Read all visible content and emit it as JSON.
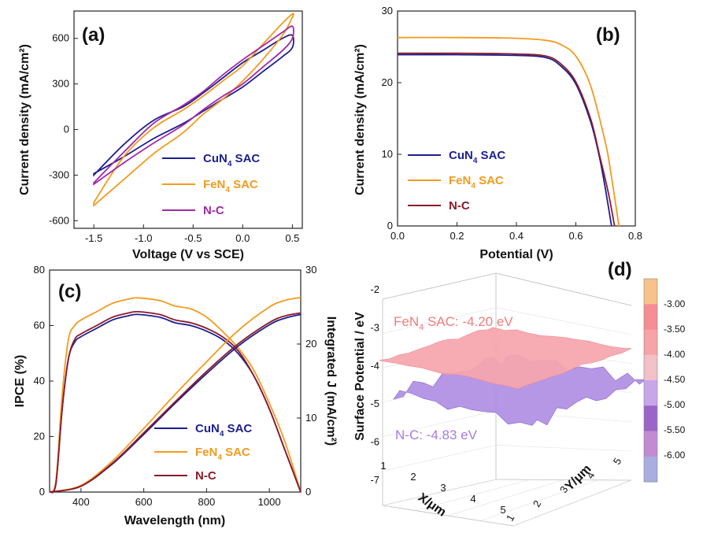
{
  "colors": {
    "cu": "#1d1f8f",
    "fe": "#f39a1e",
    "nc": "#8b1a2b",
    "ncD": "#a12aa6"
  },
  "panels": {
    "a": {
      "label": "(a)",
      "xlabel": "Voltage (V vs SCE)",
      "ylabel": "Current density (mA/cm²)",
      "xticks": [
        "-1.5",
        "-1.0",
        "-0.5",
        "0.0",
        "0.5"
      ],
      "yticks": [
        "-600",
        "-300",
        "0",
        "300",
        "600"
      ],
      "legend": [
        {
          "base": "CuN",
          "sub": "4",
          "rest": " SAC",
          "color": "#1d1f8f"
        },
        {
          "base": "FeN",
          "sub": "4",
          "rest": " SAC",
          "color": "#f39a1e"
        },
        {
          "base": "N-C",
          "sub": "",
          "rest": "",
          "color": "#a12aa6"
        }
      ]
    },
    "b": {
      "label": "(b)",
      "xlabel": "Potential (V)",
      "ylabel": "Current density (mA/cm²)",
      "xticks": [
        "0.0",
        "0.2",
        "0.4",
        "0.6",
        "0.8"
      ],
      "yticks": [
        "0",
        "10",
        "20",
        "30"
      ],
      "legend": [
        {
          "base": "CuN",
          "sub": "4",
          "rest": " SAC",
          "color": "#1d1f8f"
        },
        {
          "base": "FeN",
          "sub": "4",
          "rest": " SAC",
          "color": "#f39a1e"
        },
        {
          "base": "N-C",
          "sub": "",
          "rest": "",
          "color": "#8b1a2b"
        }
      ]
    },
    "c": {
      "label": "(c)",
      "xlabel": "Wavelength (nm)",
      "ylabel": "IPCE (%)",
      "y2label": "Integrated J (mA/cm²)",
      "xticks": [
        "400",
        "600",
        "800",
        "1000"
      ],
      "yticks": [
        "0",
        "20",
        "40",
        "60",
        "80"
      ],
      "y2ticks": [
        "0",
        "10",
        "20",
        "30"
      ],
      "legend": [
        {
          "base": "CuN",
          "sub": "4",
          "rest": " SAC",
          "color": "#1d1f8f"
        },
        {
          "base": "FeN",
          "sub": "4",
          "rest": " SAC",
          "color": "#f39a1e"
        },
        {
          "base": "N-C",
          "sub": "",
          "rest": "",
          "color": "#8b1a2b"
        }
      ]
    },
    "d": {
      "label": "(d)",
      "zlabel": "Surface Potential / eV",
      "xlabel": "X/μm",
      "ylabel": "Y/μm",
      "zticks": [
        "-2",
        "-3",
        "-4",
        "-5",
        "-6",
        "-7"
      ],
      "xticks": [
        "1",
        "2",
        "3",
        "4",
        "5"
      ],
      "yticks": [
        "1",
        "2",
        "3",
        "4",
        "5"
      ],
      "colorbar": [
        "-3.00",
        "-3.50",
        "-4.00",
        "-4.50",
        "-5.00",
        "-5.50",
        "-6.00"
      ],
      "colorbar_colors": [
        "#f7c28c",
        "#f58e92",
        "#f8a3a6",
        "#f1c1c7",
        "#c7a7e9",
        "#9a64c9",
        "#c38bd1",
        "#a8aee0"
      ],
      "annot_fe": {
        "base": "FeN",
        "sub": "4",
        "rest": " SAC: -4.20 eV",
        "color": "#f07c7c"
      },
      "annot_nc": {
        "text": "N-C: -4.83 eV",
        "color": "#a77be0"
      }
    }
  },
  "chart_data": [
    {
      "type": "line",
      "title": "(a)",
      "xlabel": "Voltage (V vs SCE)",
      "ylabel": "Current density (mA/cm²)",
      "xlim": [
        -1.7,
        0.6
      ],
      "ylim": [
        -650,
        780
      ],
      "series": [
        {
          "name": "CuN4 SAC",
          "x": [
            -1.5,
            -1.2,
            -0.9,
            -0.6,
            -0.4,
            -0.2,
            0,
            0.2,
            0.4,
            0.5,
            0.5,
            0.4,
            0.2,
            0,
            -0.2,
            -0.4,
            -0.6,
            -0.9,
            -1.2,
            -1.5
          ],
          "y": [
            -290,
            -180,
            -60,
            40,
            120,
            200,
            280,
            380,
            480,
            540,
            620,
            600,
            520,
            440,
            340,
            240,
            150,
            60,
            -100,
            -300
          ]
        },
        {
          "name": "FeN4 SAC",
          "x": [
            -1.5,
            -1.2,
            -0.9,
            -0.6,
            -0.4,
            -0.2,
            0,
            0.2,
            0.4,
            0.5,
            0.5,
            0.4,
            0.2,
            0,
            -0.2,
            -0.4,
            -0.6,
            -0.9,
            -1.2,
            -1.5
          ],
          "y": [
            -500,
            -330,
            -160,
            -20,
            100,
            200,
            320,
            460,
            620,
            740,
            760,
            700,
            560,
            420,
            320,
            220,
            130,
            10,
            -180,
            -480
          ]
        },
        {
          "name": "N-C",
          "x": [
            -1.5,
            -1.2,
            -0.9,
            -0.6,
            -0.4,
            -0.2,
            0,
            0.2,
            0.4,
            0.5,
            0.5,
            0.4,
            0.2,
            0,
            -0.2,
            -0.4,
            -0.6,
            -0.9,
            -1.2,
            -1.5
          ],
          "y": [
            -360,
            -220,
            -90,
            30,
            130,
            220,
            300,
            410,
            520,
            600,
            680,
            640,
            550,
            460,
            360,
            250,
            160,
            40,
            -150,
            -350
          ]
        }
      ]
    },
    {
      "type": "line",
      "title": "(b)",
      "xlabel": "Potential (V)",
      "ylabel": "Current density (mA/cm²)",
      "xlim": [
        0,
        0.8
      ],
      "ylim": [
        0,
        30
      ],
      "series": [
        {
          "name": "CuN4 SAC",
          "x": [
            0,
            0.2,
            0.4,
            0.5,
            0.55,
            0.6,
            0.65,
            0.68,
            0.7,
            0.72
          ],
          "y": [
            23.9,
            23.9,
            23.8,
            23.5,
            22.3,
            19.8,
            14.5,
            9.5,
            5.0,
            0
          ]
        },
        {
          "name": "FeN4 SAC",
          "x": [
            0,
            0.2,
            0.4,
            0.5,
            0.55,
            0.6,
            0.65,
            0.7,
            0.72,
            0.745
          ],
          "y": [
            26.3,
            26.3,
            26.2,
            25.9,
            25.3,
            23.7,
            19.5,
            11.5,
            6.8,
            0
          ]
        },
        {
          "name": "N-C",
          "x": [
            0,
            0.2,
            0.4,
            0.5,
            0.55,
            0.6,
            0.65,
            0.68,
            0.71,
            0.73
          ],
          "y": [
            24.1,
            24.1,
            24.0,
            23.7,
            22.6,
            20.1,
            14.9,
            9.8,
            4.5,
            0
          ]
        }
      ]
    },
    {
      "type": "line",
      "title": "(c)",
      "xlabel": "Wavelength (nm)",
      "ylabel": "IPCE (%)",
      "y2label": "Integrated J (mA/cm²)",
      "xlim": [
        300,
        1100
      ],
      "ylim": [
        0,
        80
      ],
      "y2lim": [
        0,
        30
      ],
      "series": [
        {
          "name": "CuN4 SAC",
          "axis": "IPCE",
          "x": [
            300,
            320,
            340,
            360,
            380,
            400,
            450,
            500,
            550,
            580,
            650,
            700,
            750,
            800,
            850,
            900,
            950,
            1000,
            1050,
            1100
          ],
          "y": [
            0,
            3,
            30,
            48,
            54,
            56,
            59,
            62,
            63.5,
            64,
            63,
            61,
            60,
            58,
            55,
            50,
            42,
            30,
            15,
            0
          ]
        },
        {
          "name": "FeN4 SAC",
          "axis": "IPCE",
          "x": [
            300,
            320,
            340,
            360,
            380,
            400,
            450,
            500,
            550,
            580,
            650,
            700,
            750,
            800,
            850,
            900,
            950,
            1000,
            1050,
            1100
          ],
          "y": [
            0,
            4,
            35,
            55,
            60,
            62,
            65,
            68,
            69.5,
            70,
            69,
            67,
            66,
            63,
            58,
            52,
            44,
            32,
            18,
            0
          ]
        },
        {
          "name": "N-C",
          "axis": "IPCE",
          "x": [
            300,
            320,
            340,
            360,
            380,
            400,
            450,
            500,
            550,
            580,
            650,
            700,
            750,
            800,
            850,
            900,
            950,
            1000,
            1050,
            1100
          ],
          "y": [
            0,
            3,
            30,
            48,
            55,
            57,
            60,
            63,
            64.5,
            65,
            64,
            62,
            61,
            59,
            56,
            51,
            42,
            30,
            15,
            0
          ]
        },
        {
          "name": "CuN4 SAC",
          "axis": "Integrated J",
          "x": [
            300,
            400,
            500,
            600,
            700,
            800,
            900,
            1000,
            1050,
            1100
          ],
          "y": [
            0,
            0.8,
            3.8,
            7.8,
            12.0,
            16.0,
            19.7,
            22.6,
            23.5,
            24.0
          ]
        },
        {
          "name": "FeN4 SAC",
          "axis": "Integrated J",
          "x": [
            300,
            400,
            500,
            600,
            700,
            800,
            900,
            1000,
            1050,
            1100
          ],
          "y": [
            0,
            0.9,
            4.2,
            8.6,
            13.2,
            17.6,
            21.8,
            25.0,
            25.9,
            26.3
          ]
        },
        {
          "name": "N-C",
          "axis": "Integrated J",
          "x": [
            300,
            400,
            500,
            600,
            700,
            800,
            900,
            1000,
            1050,
            1100
          ],
          "y": [
            0,
            0.8,
            3.9,
            8.0,
            12.2,
            16.3,
            20.0,
            22.9,
            23.8,
            24.2
          ]
        }
      ]
    },
    {
      "type": "heatmap",
      "title": "(d)",
      "xlabel": "X/μm",
      "ylabel": "Y/μm",
      "zlabel": "Surface Potential / eV",
      "zlim": [
        -7,
        -2
      ],
      "series": [
        {
          "name": "FeN4 SAC",
          "mean_eV": -4.2
        },
        {
          "name": "N-C",
          "mean_eV": -4.83
        }
      ],
      "colorbar_ticks": [
        -3.0,
        -3.5,
        -4.0,
        -4.5,
        -5.0,
        -5.5,
        -6.0
      ]
    }
  ]
}
